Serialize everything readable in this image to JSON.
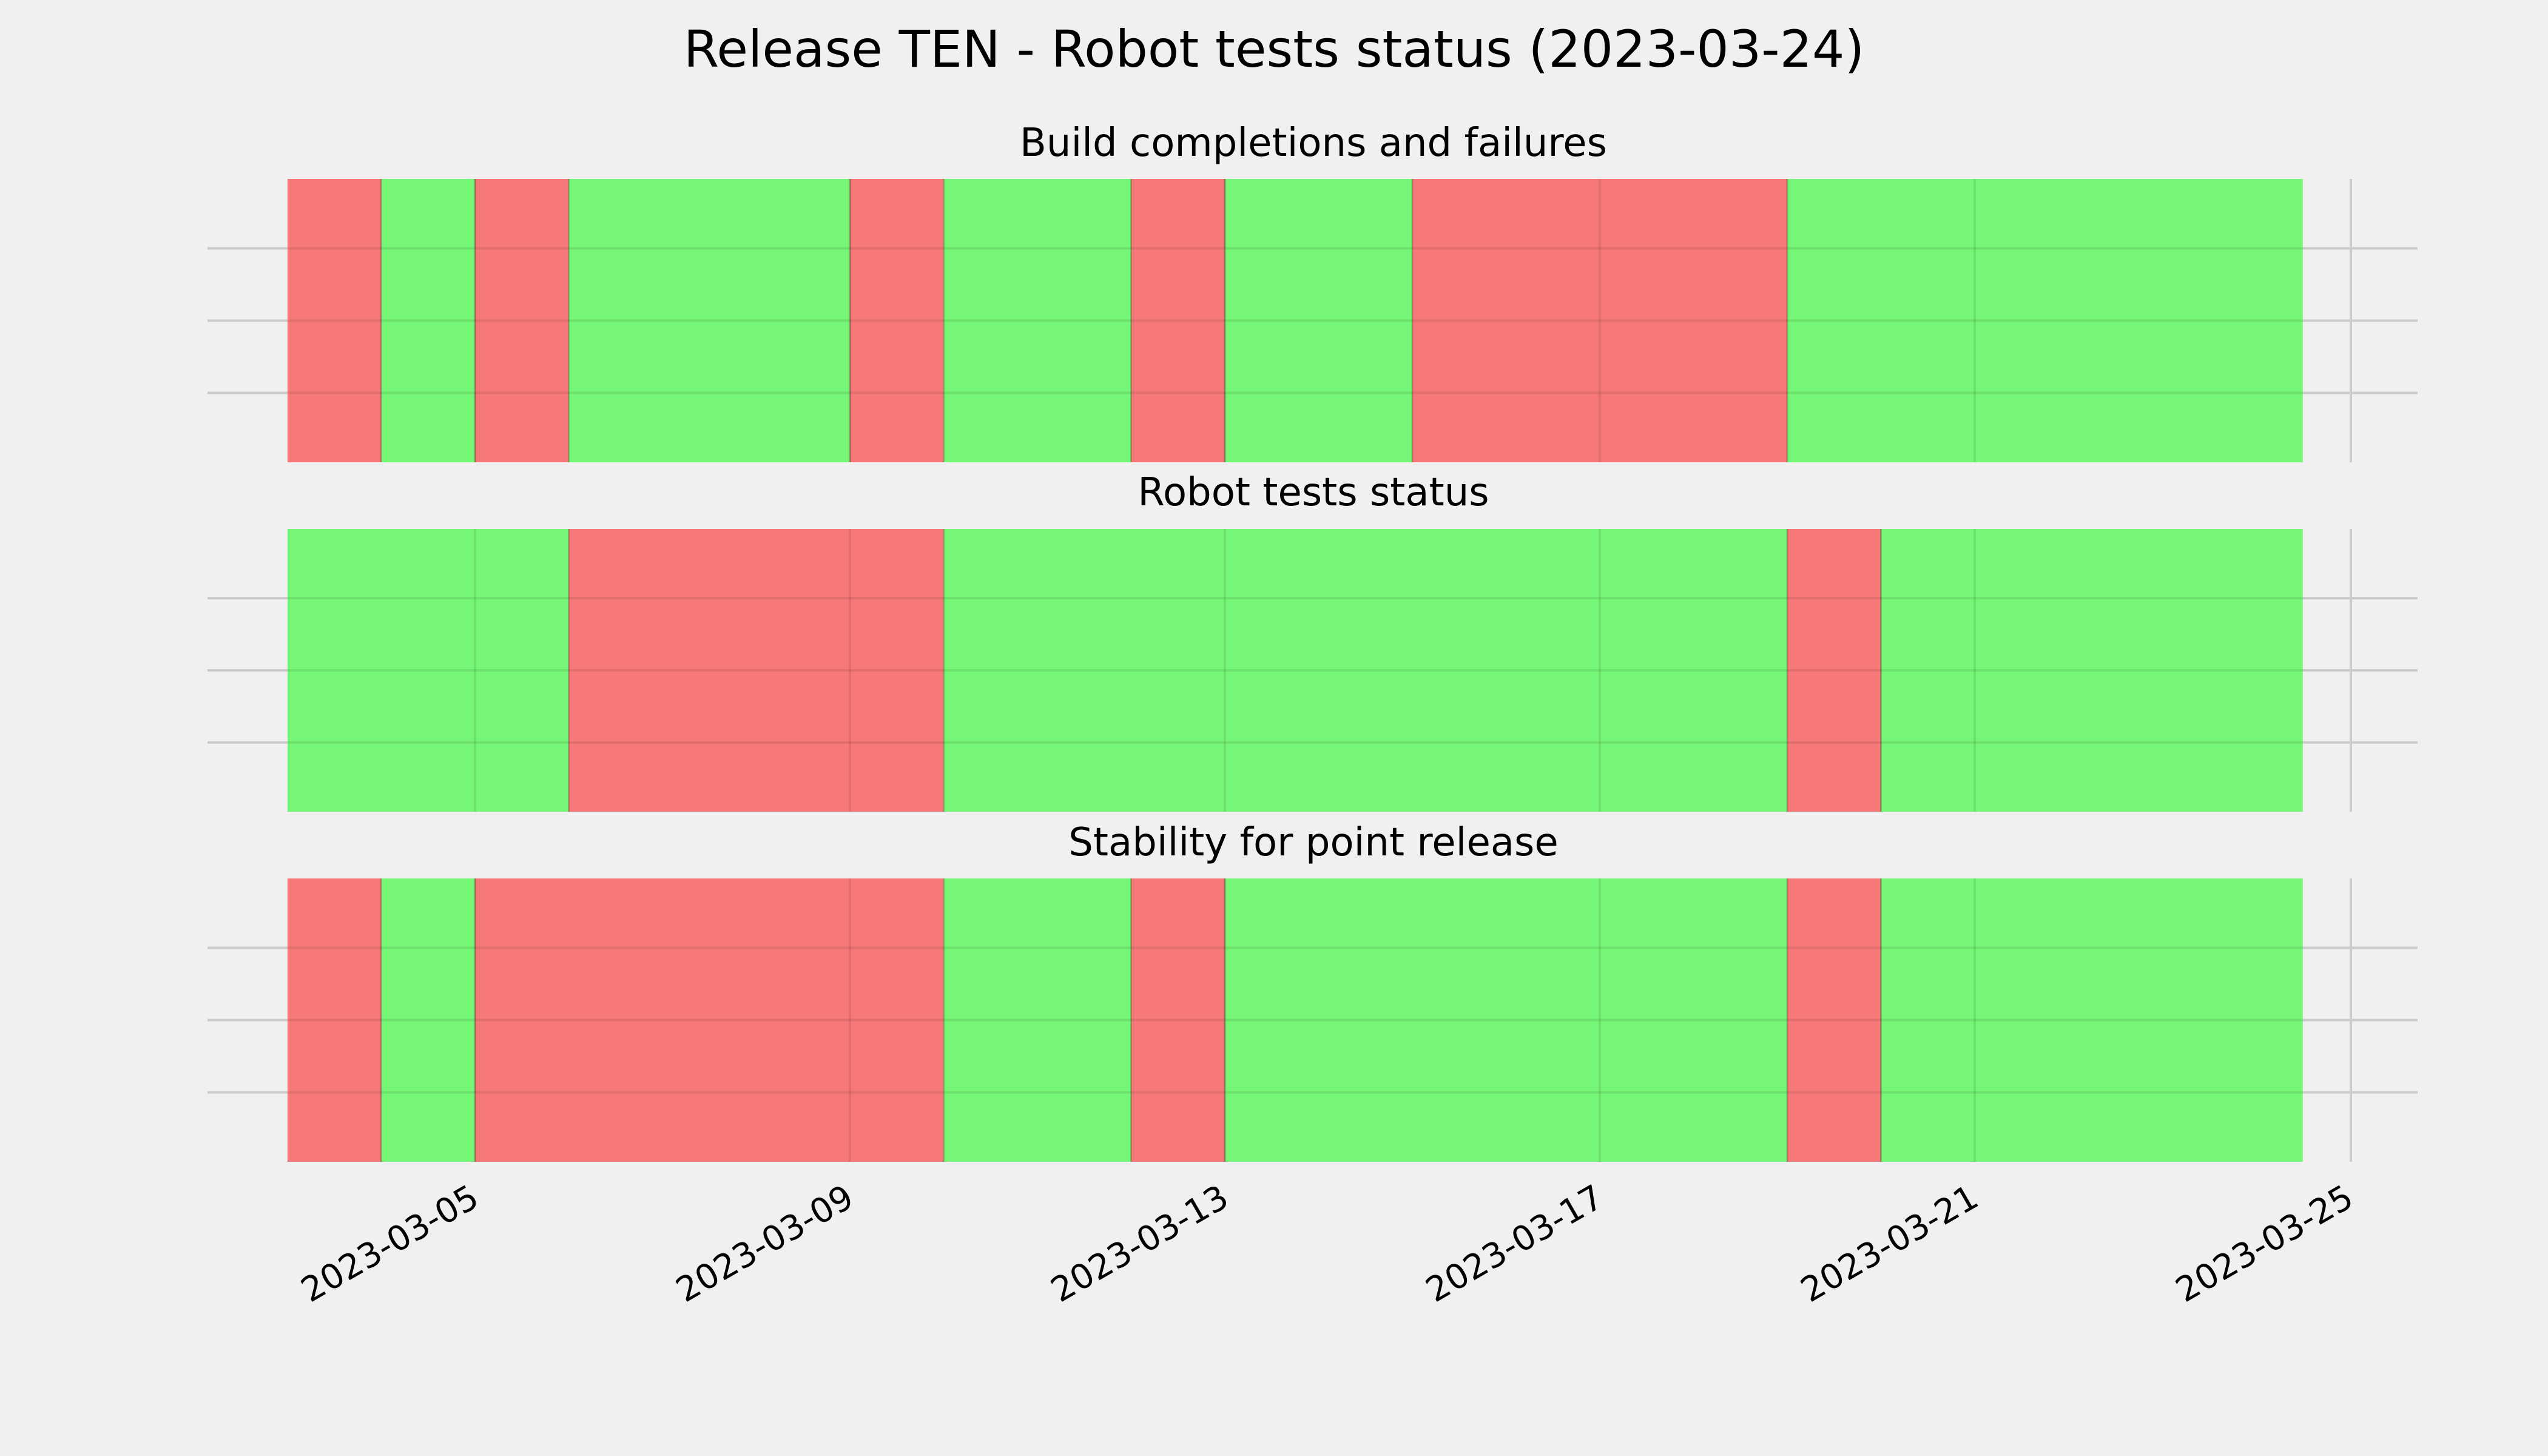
{
  "chart_data": {
    "type": "timeline",
    "title": "Release TEN - Robot tests status (2023-03-24)",
    "x_ticks": [
      "2023-03-05",
      "2023-03-09",
      "2023-03-13",
      "2023-03-17",
      "2023-03-21",
      "2023-03-25"
    ],
    "x_range": [
      "2023-03-03",
      "2023-03-25"
    ],
    "colors": {
      "pass": "#76f676",
      "fail": "#f67878",
      "background": "#f0f0f0"
    },
    "grid": true,
    "panels": [
      {
        "title": "Build completions and failures",
        "segments": [
          {
            "start": "2023-03-03",
            "end": "2023-03-04",
            "status": "fail"
          },
          {
            "start": "2023-03-04",
            "end": "2023-03-05",
            "status": "pass"
          },
          {
            "start": "2023-03-05",
            "end": "2023-03-06",
            "status": "fail"
          },
          {
            "start": "2023-03-06",
            "end": "2023-03-09",
            "status": "pass"
          },
          {
            "start": "2023-03-09",
            "end": "2023-03-10",
            "status": "fail"
          },
          {
            "start": "2023-03-10",
            "end": "2023-03-12",
            "status": "pass"
          },
          {
            "start": "2023-03-12",
            "end": "2023-03-13",
            "status": "fail"
          },
          {
            "start": "2023-03-13",
            "end": "2023-03-15",
            "status": "pass"
          },
          {
            "start": "2023-03-15",
            "end": "2023-03-19",
            "status": "fail"
          },
          {
            "start": "2023-03-19",
            "end": "2023-03-24.5",
            "status": "pass"
          }
        ]
      },
      {
        "title": "Robot tests status",
        "segments": [
          {
            "start": "2023-03-03",
            "end": "2023-03-06",
            "status": "pass"
          },
          {
            "start": "2023-03-06",
            "end": "2023-03-10",
            "status": "fail"
          },
          {
            "start": "2023-03-10",
            "end": "2023-03-19",
            "status": "pass"
          },
          {
            "start": "2023-03-19",
            "end": "2023-03-20",
            "status": "fail"
          },
          {
            "start": "2023-03-20",
            "end": "2023-03-24.5",
            "status": "pass"
          }
        ]
      },
      {
        "title": "Stability for point release",
        "segments": [
          {
            "start": "2023-03-03",
            "end": "2023-03-04",
            "status": "fail"
          },
          {
            "start": "2023-03-04",
            "end": "2023-03-05",
            "status": "pass"
          },
          {
            "start": "2023-03-05",
            "end": "2023-03-10",
            "status": "fail"
          },
          {
            "start": "2023-03-10",
            "end": "2023-03-12",
            "status": "pass"
          },
          {
            "start": "2023-03-12",
            "end": "2023-03-13",
            "status": "fail"
          },
          {
            "start": "2023-03-13",
            "end": "2023-03-19",
            "status": "pass"
          },
          {
            "start": "2023-03-19",
            "end": "2023-03-20",
            "status": "fail"
          },
          {
            "start": "2023-03-20",
            "end": "2023-03-24.5",
            "status": "pass"
          }
        ]
      }
    ]
  }
}
